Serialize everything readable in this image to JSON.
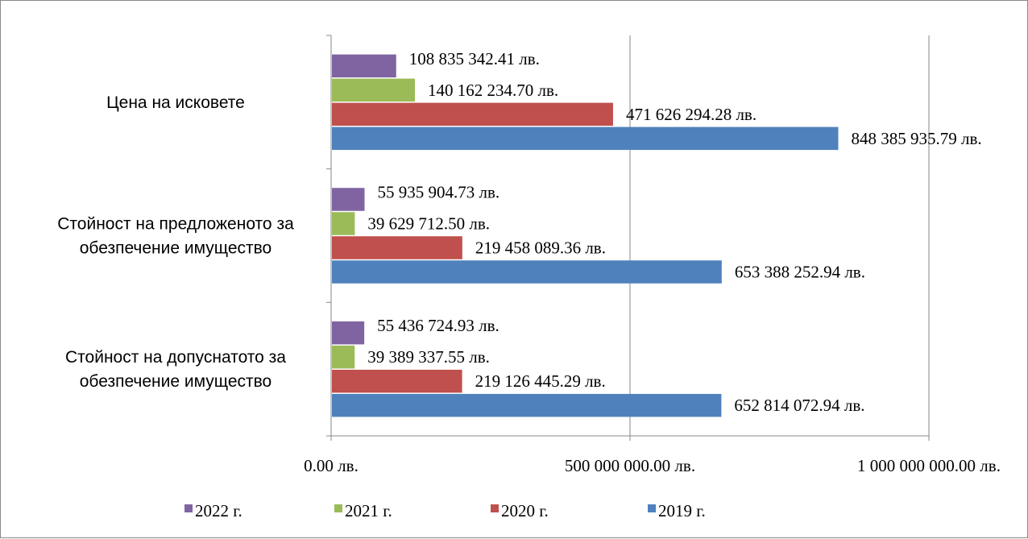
{
  "chart_data": {
    "type": "bar",
    "orientation": "horizontal",
    "categories": [
      "Цена на исковете",
      "Стойност на предложеното за обезпечение имущество",
      "Стойност на допуснатото за обезпечение имущество"
    ],
    "category_lines": [
      [
        "Цена на исковете"
      ],
      [
        "Стойност на предложеното за",
        "обезпечение имущество"
      ],
      [
        "Стойност на допуснатото за",
        "обезпечение имущество"
      ]
    ],
    "series": [
      {
        "name": "2022 г.",
        "color": "#8064A2",
        "values": [
          108835342.41,
          55935904.73,
          55436724.93
        ],
        "labels": [
          "108 835 342.41 лв.",
          "55 935 904.73 лв.",
          "55 436 724.93 лв."
        ]
      },
      {
        "name": "2021 г.",
        "color": "#9BBB59",
        "values": [
          140162234.7,
          39629712.5,
          39389337.55
        ],
        "labels": [
          "140 162 234.70 лв.",
          "39 629 712.50 лв.",
          "39 389 337.55 лв."
        ]
      },
      {
        "name": "2020 г.",
        "color": "#C0504D",
        "values": [
          471626294.28,
          219458089.36,
          219126445.29
        ],
        "labels": [
          "471 626 294.28 лв.",
          "219 458 089.36 лв.",
          "219 126 445.29 лв."
        ]
      },
      {
        "name": "2019 г.",
        "color": "#4F81BD",
        "values": [
          848385935.79,
          653388252.94,
          652814072.94
        ],
        "labels": [
          "848 385 935.79 лв.",
          "653 388 252.94 лв.",
          "652 814 072.94 лв."
        ]
      }
    ],
    "xlim": [
      0,
      1000000000
    ],
    "x_ticks": [
      0,
      500000000,
      1000000000
    ],
    "x_tick_labels": [
      "0.00 лв.",
      "500 000 000.00 лв.",
      "1 000 000 000.00 лв."
    ],
    "grid": "vertical",
    "legend_position": "bottom"
  }
}
